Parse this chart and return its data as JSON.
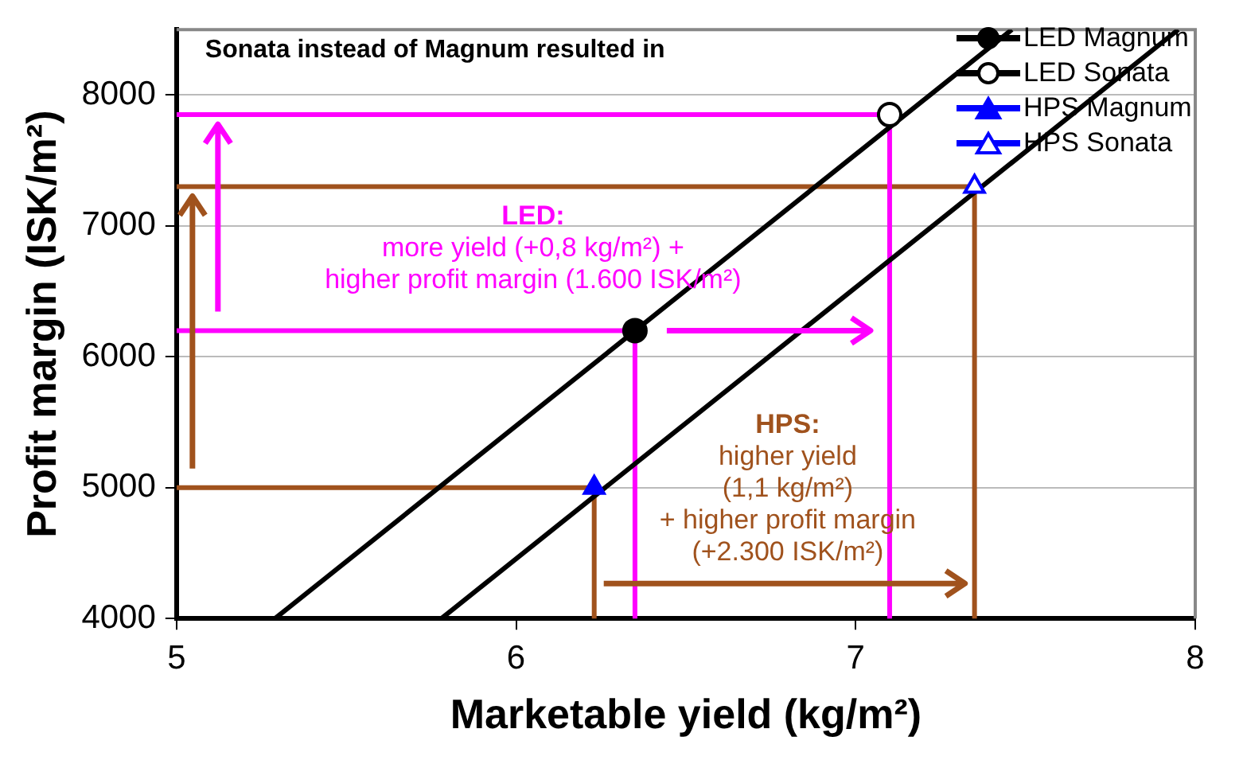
{
  "chart_data": {
    "type": "scatter",
    "title": "Sonata instead of Magnum resulted in",
    "xlabel": "Marketable yield (kg/m²)",
    "ylabel": "Profit margin (ISK/m²)",
    "xlim": [
      5,
      8
    ],
    "xticks": [
      5,
      6,
      7,
      8
    ],
    "ylim": [
      4000,
      8500
    ],
    "yticks": [
      4000,
      5000,
      6000,
      7000,
      8000
    ],
    "grid": "y",
    "legend": "top right",
    "annotations": [
      "LED:\nmore yield (+0,8 kg/m²) +\nhigher profit margin (1.600 ISK/m²)",
      "HPS:\nhigher yield\n(1,1 kg/m²)\n+ higher profit margin\n(+2.300 ISK/m²)"
    ],
    "series": [
      {
        "type": "line",
        "color": "#000000",
        "marker": "none",
        "x": [
          5.29,
          7.46
        ],
        "values": [
          4000,
          8500
        ]
      },
      {
        "type": "line",
        "color": "#000000",
        "marker": "none",
        "x": [
          5.78,
          7.95
        ],
        "values": [
          4000,
          8500
        ]
      },
      {
        "type": "line",
        "color": "#ff00ff",
        "marker": "none",
        "x": [
          5,
          6.35,
          6.35
        ],
        "values": [
          6200,
          6200,
          4000
        ]
      },
      {
        "type": "line",
        "color": "#ff00ff",
        "marker": "none",
        "x": [
          5,
          7.1,
          7.1
        ],
        "values": [
          7850,
          7850,
          4000
        ]
      },
      {
        "type": "line",
        "color": "#a0521d",
        "marker": "none",
        "x": [
          5,
          6.23,
          6.23
        ],
        "values": [
          5000,
          5000,
          4000
        ]
      },
      {
        "type": "line",
        "color": "#a0521d",
        "marker": "none",
        "x": [
          5,
          7.35,
          7.35
        ],
        "values": [
          7300,
          7300,
          4000
        ]
      },
      {
        "name": "LED Magnum",
        "color": "#000000",
        "marker": "circle",
        "x": [
          6.35
        ],
        "values": [
          6200
        ]
      },
      {
        "name": "LED Sonata",
        "color": "#000000",
        "marker": "circle",
        "x": [
          7.1
        ],
        "values": [
          7850
        ]
      },
      {
        "name": "HPS Magnum",
        "color": "#0000ff",
        "marker": "triangle",
        "x": [
          6.23
        ],
        "values": [
          5000
        ]
      },
      {
        "name": "HPS Sonata",
        "color": "#0000ff",
        "marker": "triangle",
        "x": [
          7.35
        ],
        "values": [
          7300
        ]
      }
    ]
  }
}
